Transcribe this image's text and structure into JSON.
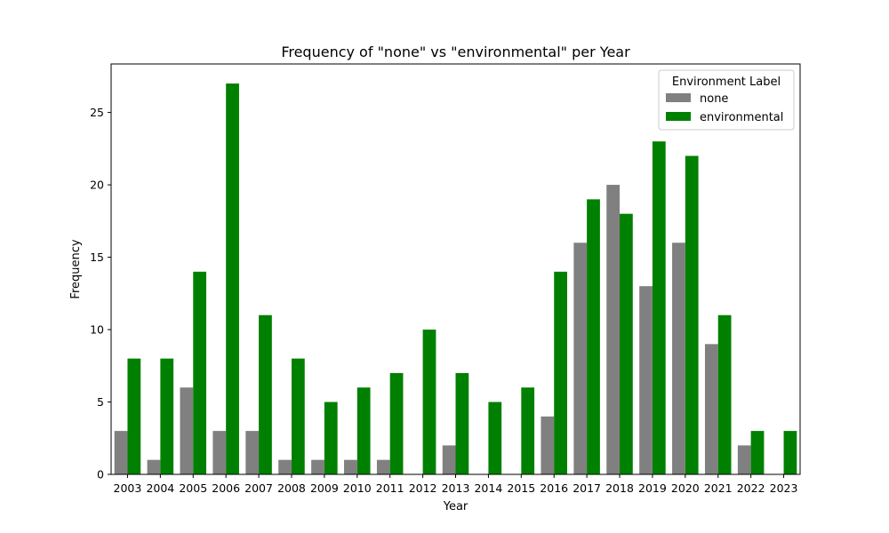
{
  "chart_data": {
    "type": "bar",
    "title": "Frequency of \"none\" vs \"environmental\" per Year",
    "xlabel": "Year",
    "ylabel": "Frequency",
    "ylim": [
      0,
      28.35
    ],
    "yticks": [
      0,
      5,
      10,
      15,
      20,
      25
    ],
    "categories": [
      "2003",
      "2004",
      "2005",
      "2006",
      "2007",
      "2008",
      "2009",
      "2010",
      "2011",
      "2012",
      "2013",
      "2014",
      "2015",
      "2016",
      "2017",
      "2018",
      "2019",
      "2020",
      "2021",
      "2022",
      "2023"
    ],
    "series": [
      {
        "name": "none",
        "color": "#808080",
        "values": [
          3,
          1,
          6,
          3,
          3,
          1,
          1,
          1,
          1,
          0,
          2,
          0,
          0,
          4,
          16,
          20,
          13,
          16,
          9,
          2,
          0
        ]
      },
      {
        "name": "environmental",
        "color": "#008000",
        "values": [
          8,
          8,
          14,
          27,
          11,
          8,
          5,
          6,
          7,
          10,
          7,
          5,
          6,
          14,
          19,
          18,
          23,
          22,
          11,
          3,
          3
        ]
      }
    ],
    "legend": {
      "title": "Environment Label",
      "placement": "top-right"
    },
    "grid": false
  }
}
